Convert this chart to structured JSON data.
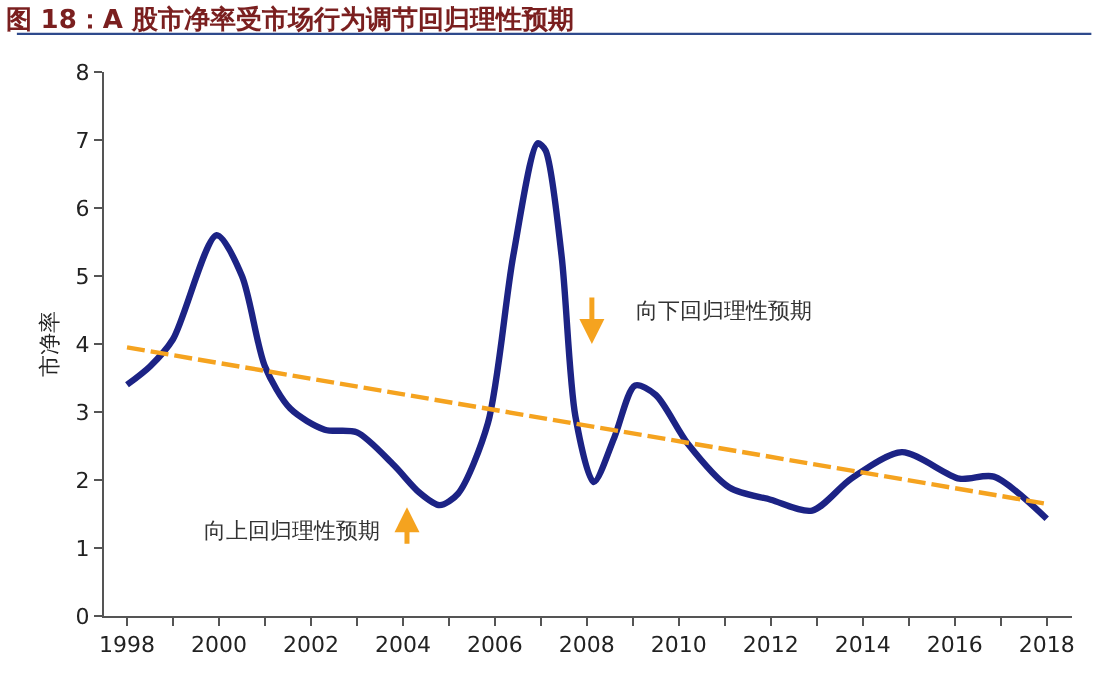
{
  "chart_data": {
    "type": "line",
    "title": "图 18：A 股市净率受市场行为调节回归理性预期",
    "ylabel": "市净率",
    "series": [
      {
        "color": "#1c2385",
        "x": [
          1998.0,
          1998.5,
          1999.0,
          1999.95,
          2000.5,
          2001.0,
          2001.55,
          2002.3,
          2003.0,
          2003.8,
          2004.35,
          2004.8,
          2005.2,
          2005.85,
          2006.4,
          2006.93,
          2007.1,
          2007.45,
          2007.75,
          2008.15,
          2008.6,
          2009.05,
          2009.5,
          2010.2,
          2011.1,
          2012.0,
          2012.9,
          2013.75,
          2014.85,
          2016.1,
          2016.85,
          2018.0
        ],
        "values": [
          3.4,
          3.67,
          4.07,
          5.6,
          5.0,
          3.67,
          3.05,
          2.74,
          2.7,
          2.22,
          1.82,
          1.63,
          1.8,
          2.84,
          5.3,
          6.95,
          6.85,
          5.3,
          2.94,
          1.97,
          2.63,
          3.39,
          3.25,
          2.53,
          1.89,
          1.71,
          1.55,
          2.02,
          2.41,
          2.02,
          2.05,
          1.43
        ]
      },
      {
        "color": "#f5a31f",
        "line_style": "dashed",
        "x": [
          1998.0,
          2018.0
        ],
        "values": [
          3.95,
          1.65
        ]
      }
    ],
    "xlim": [
      1997.5,
      2018.55
    ],
    "ylim": [
      0,
      8
    ],
    "xticks": [
      1998,
      {
        "value": 1999,
        "label": null
      },
      2000,
      {
        "value": 2001,
        "label": null
      },
      2002,
      {
        "value": 2003,
        "label": null
      },
      2004,
      {
        "value": 2005,
        "label": null
      },
      2006,
      {
        "value": 2007,
        "label": null
      },
      2008,
      {
        "value": 2009,
        "label": null
      },
      2010,
      {
        "value": 2011,
        "label": null
      },
      2012,
      {
        "value": 2013,
        "label": null
      },
      2014,
      {
        "value": 2015,
        "label": null
      },
      2016,
      {
        "value": 2017,
        "label": null
      },
      2018
    ],
    "yticks": [
      0,
      1,
      2,
      3,
      4,
      5,
      6,
      7,
      8
    ],
    "annotations": [
      "向上回归理性预期",
      "向下回归理性预期"
    ]
  }
}
